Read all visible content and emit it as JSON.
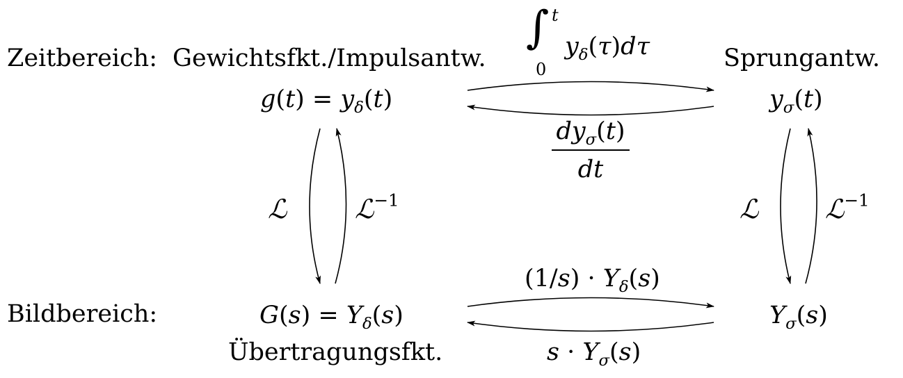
{
  "labels": {
    "zeitbereich": "Zeitbereich:",
    "bildbereich": "Bildbereich:",
    "gewichtsfkt": "Gewichtsfkt./Impulsantw.",
    "sprungantw": "Sprungantw.",
    "uebertragungsfkt": "Übertragungsfkt."
  },
  "transforms": {
    "laplace": "ℒ",
    "inverse_exp": "−1",
    "integral_upper": "t",
    "integral_lower": "0",
    "integrand": "y",
    "integrand_sub": "δ",
    "integrand_rest": "(τ)dτ",
    "deriv_num_y": "y",
    "deriv_num_sub": "σ",
    "deriv_num_rest": "(t)",
    "deriv_den": "dt",
    "deriv_d": "d"
  }
}
